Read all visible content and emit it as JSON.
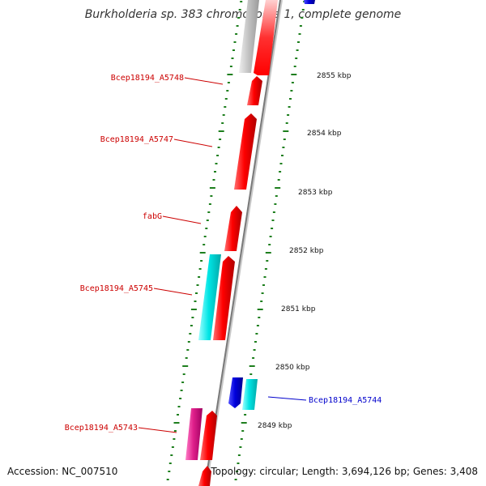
{
  "title": "Burkholderia sp. 383 chromosome 1, complete genome",
  "footer": {
    "accession": "Accession: NC_007510",
    "summary": "Topology: circular; Length: 3,694,126 bp; Genes: 3,408"
  },
  "colors": {
    "tick": "#1e7f1e",
    "backbone": "#8a8a8a",
    "gene_forward": "#ff0000",
    "gene_reverse": "#0000dd",
    "gene_cyan": "#00e5e5",
    "gene_grey": "#bdbdbd",
    "gene_pink": "#e0208c",
    "label_forward": "#cc0000",
    "label_reverse": "#0000cc"
  },
  "scale": {
    "unit": "kbp",
    "ticks": [
      "2849 kbp",
      "2850 kbp",
      "2851 kbp",
      "2852 kbp",
      "2853 kbp",
      "2854 kbp",
      "2855 kbp"
    ]
  },
  "gene_labels": [
    {
      "name": "Bcep18194_A5748",
      "strand": "forward"
    },
    {
      "name": "Bcep18194_A5747",
      "strand": "forward"
    },
    {
      "name": "fabG",
      "strand": "forward"
    },
    {
      "name": "Bcep18194_A5745",
      "strand": "forward"
    },
    {
      "name": "Bcep18194_A5744",
      "strand": "reverse"
    },
    {
      "name": "Bcep18194_A5743",
      "strand": "forward"
    }
  ]
}
